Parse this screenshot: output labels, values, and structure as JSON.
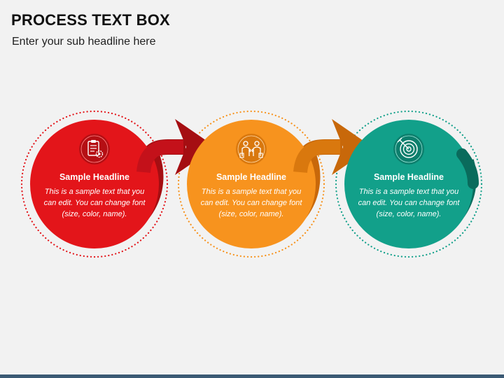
{
  "header": {
    "title": "PROCESS TEXT BOX",
    "subtitle": "Enter your sub headline here"
  },
  "steps": [
    {
      "icon": "clipboard-gear-icon",
      "color": "#e3151a",
      "shade": "#a50e12",
      "headline": "Sample Headline",
      "body": "This is a sample text that you can edit. You can change font (size, color, name)."
    },
    {
      "icon": "people-exchange-icon",
      "color": "#f7931e",
      "shade": "#c8680a",
      "headline": "Sample Headline",
      "body": "This is a sample text that you can edit. You can change font (size, color, name)."
    },
    {
      "icon": "target-arrow-icon",
      "color": "#12a08a",
      "shade": "#0a6b5c",
      "headline": "Sample Headline",
      "body": "This is a sample text that you can edit. You can change font (size, color, name)."
    }
  ]
}
